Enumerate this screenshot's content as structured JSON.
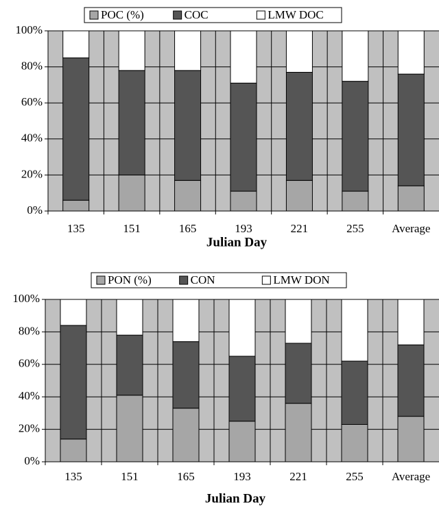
{
  "chart_data": [
    {
      "type": "bar",
      "stacked": true,
      "x_label": "Julian Day",
      "categories": [
        "135",
        "151",
        "165",
        "193",
        "221",
        "255",
        "Average"
      ],
      "series": [
        {
          "name": "POC (%)",
          "color": "#a6a6a6",
          "values": [
            6,
            20,
            17,
            11,
            17,
            11,
            14
          ]
        },
        {
          "name": "COC",
          "color": "#555555",
          "values": [
            79,
            58,
            61,
            60,
            60,
            61,
            62
          ]
        },
        {
          "name": "LMW DOC",
          "color": "#ffffff",
          "values": [
            15,
            22,
            22,
            29,
            23,
            28,
            24
          ]
        }
      ],
      "ylim": [
        0,
        100
      ],
      "yticks": [
        {
          "value": 0,
          "label": "0%"
        },
        {
          "value": 20,
          "label": "20%"
        },
        {
          "value": 40,
          "label": "40%"
        },
        {
          "value": 60,
          "label": "60%"
        },
        {
          "value": 80,
          "label": "80%"
        },
        {
          "value": 100,
          "label": "100%"
        }
      ],
      "grid": true,
      "plot_background": "#c0c0c0",
      "legend": "top"
    },
    {
      "type": "bar",
      "stacked": true,
      "x_label": "Julian Day",
      "categories": [
        "135",
        "151",
        "165",
        "193",
        "221",
        "255",
        "Average"
      ],
      "series": [
        {
          "name": "PON (%)",
          "color": "#a6a6a6",
          "values": [
            14,
            41,
            33,
            25,
            36,
            23,
            28
          ]
        },
        {
          "name": "CON",
          "color": "#555555",
          "values": [
            70,
            37,
            41,
            40,
            37,
            39,
            44
          ]
        },
        {
          "name": "LMW DON",
          "color": "#ffffff",
          "values": [
            16,
            22,
            26,
            35,
            27,
            38,
            28
          ]
        }
      ],
      "ylim": [
        0,
        100
      ],
      "yticks": [
        {
          "value": 0,
          "label": "0%"
        },
        {
          "value": 20,
          "label": "20%"
        },
        {
          "value": 40,
          "label": "40%"
        },
        {
          "value": 60,
          "label": "60%"
        },
        {
          "value": 80,
          "label": "80%"
        },
        {
          "value": 100,
          "label": "100%"
        }
      ],
      "grid": true,
      "plot_background": "#c0c0c0",
      "legend": "top"
    }
  ]
}
